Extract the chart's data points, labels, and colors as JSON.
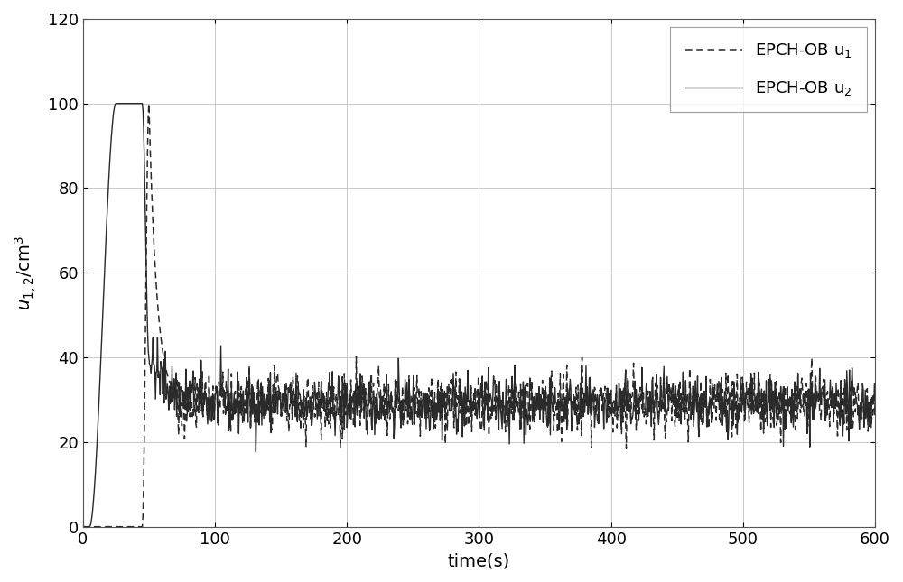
{
  "title": "",
  "xlabel": "time(s)",
  "ylabel": "u_{1,2}/cm^3",
  "xlim": [
    0,
    600
  ],
  "ylim": [
    0,
    120
  ],
  "xticks": [
    0,
    100,
    200,
    300,
    400,
    500,
    600
  ],
  "yticks": [
    0,
    20,
    40,
    60,
    80,
    100,
    120
  ],
  "legend_u1": "EPCH-OB u$_1$",
  "legend_u2": "EPCH-OB u$_2$",
  "line_color": "#2a2a2a",
  "bg_color": "#ffffff",
  "grid_color": "#c8c8c8",
  "figsize": [
    10.0,
    6.45
  ],
  "dpi": 100,
  "seed": 42,
  "u2_rise_start": 5.0,
  "u2_rise_end": 25.0,
  "u2_flat_end": 45.0,
  "u2_drop_end": 50.0,
  "u1_rise_start": 45.0,
  "u1_rise_end": 50.0,
  "u1_drop_end": 70.0,
  "peak_value": 100.0,
  "steady_mean": 29.0,
  "steady_noise_amp": 3.5,
  "noise_freq_dt": 0.5
}
